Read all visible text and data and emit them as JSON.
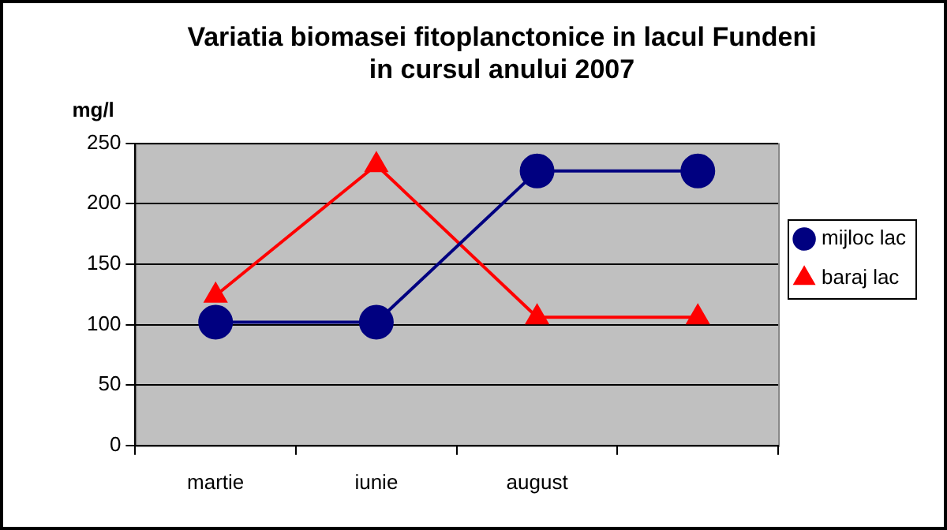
{
  "chart_data": {
    "type": "line",
    "title": [
      "Variatia biomasei fitoplanctonice in lacul Fundeni",
      "in cursul anului 2007"
    ],
    "ylabel": "mg/l",
    "categories": [
      "martie",
      "iunie",
      "august",
      null
    ],
    "series": [
      {
        "name": "mijloc lac",
        "color": "#000080",
        "marker": "circle",
        "values": [
          102,
          102,
          227,
          227
        ]
      },
      {
        "name": "baraj lac",
        "color": "#ff0000",
        "marker": "triangle",
        "values": [
          124,
          232,
          106,
          106
        ]
      }
    ],
    "ylim": [
      0,
      250
    ],
    "yticks": [
      0,
      50,
      100,
      150,
      200,
      250
    ],
    "grid": "y",
    "legend": "right"
  }
}
